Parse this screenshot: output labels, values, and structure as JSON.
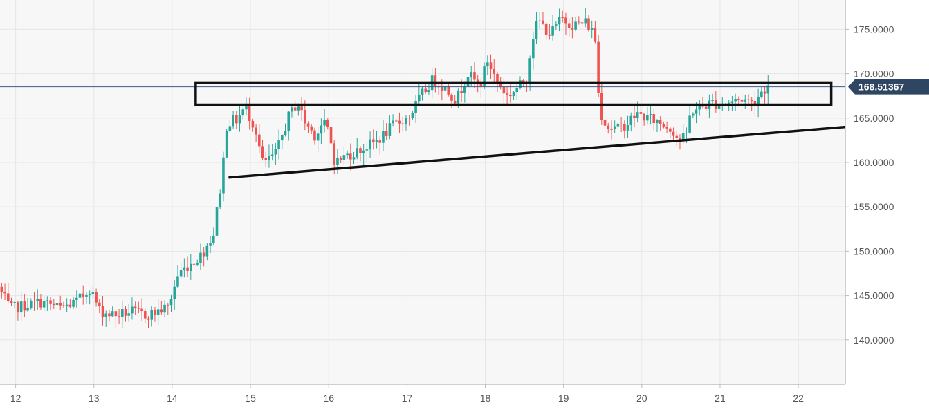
{
  "chart_data": {
    "type": "candlestick",
    "title": "",
    "xlabel": "",
    "ylabel": "",
    "x_ticks": [
      "12",
      "13",
      "14",
      "15",
      "16",
      "17",
      "18",
      "19",
      "20",
      "21",
      "22"
    ],
    "x_range": [
      11.8,
      22.6
    ],
    "y_ticks": [
      "140.0000",
      "145.0000",
      "150.0000",
      "155.0000",
      "160.0000",
      "165.0000",
      "170.0000",
      "175.0000"
    ],
    "ylim": [
      135.0,
      178.3
    ],
    "grid": true,
    "current_price": 168.51367,
    "current_price_label": "168.51367",
    "anchors": [
      [
        11.8,
        146.0
      ],
      [
        11.95,
        143.5
      ],
      [
        12.1,
        143.8
      ],
      [
        12.35,
        144.3
      ],
      [
        12.6,
        143.6
      ],
      [
        12.8,
        144.3
      ],
      [
        12.97,
        145.8
      ],
      [
        13.1,
        143.2
      ],
      [
        13.3,
        142.8
      ],
      [
        13.5,
        143.2
      ],
      [
        13.7,
        142.8
      ],
      [
        13.97,
        143.7
      ],
      [
        14.1,
        147.5
      ],
      [
        14.25,
        148.6
      ],
      [
        14.4,
        149.6
      ],
      [
        14.55,
        152.0
      ],
      [
        14.65,
        158.0
      ],
      [
        14.72,
        164.5
      ],
      [
        14.85,
        164.8
      ],
      [
        14.95,
        166.2
      ],
      [
        15.08,
        164.0
      ],
      [
        15.18,
        159.8
      ],
      [
        15.35,
        161.0
      ],
      [
        15.5,
        165.0
      ],
      [
        15.62,
        166.8
      ],
      [
        15.72,
        164.5
      ],
      [
        15.85,
        163.0
      ],
      [
        15.95,
        164.5
      ],
      [
        16.02,
        163.5
      ],
      [
        16.1,
        160.0
      ],
      [
        16.25,
        160.8
      ],
      [
        16.45,
        161.5
      ],
      [
        16.65,
        162.5
      ],
      [
        16.85,
        164.2
      ],
      [
        17.05,
        165.2
      ],
      [
        17.2,
        167.5
      ],
      [
        17.35,
        169.3
      ],
      [
        17.5,
        168.5
      ],
      [
        17.65,
        167.0
      ],
      [
        17.8,
        170.0
      ],
      [
        17.95,
        168.5
      ],
      [
        18.05,
        171.5
      ],
      [
        18.15,
        169.5
      ],
      [
        18.3,
        167.5
      ],
      [
        18.45,
        168.5
      ],
      [
        18.55,
        169.5
      ],
      [
        18.62,
        174.0
      ],
      [
        18.7,
        176.0
      ],
      [
        18.85,
        174.5
      ],
      [
        19.0,
        176.2
      ],
      [
        19.15,
        175.5
      ],
      [
        19.3,
        175.8
      ],
      [
        19.42,
        174.5
      ],
      [
        19.48,
        166.0
      ],
      [
        19.58,
        164.0
      ],
      [
        19.72,
        163.8
      ],
      [
        19.85,
        164.5
      ],
      [
        19.95,
        165.5
      ],
      [
        20.1,
        165.0
      ],
      [
        20.25,
        164.5
      ],
      [
        20.4,
        163.8
      ],
      [
        20.5,
        162.5
      ],
      [
        20.58,
        162.8
      ],
      [
        20.65,
        165.8
      ],
      [
        20.78,
        166.2
      ],
      [
        20.92,
        166.8
      ],
      [
        21.0,
        166.5
      ],
      [
        21.15,
        166.8
      ],
      [
        21.3,
        167.2
      ],
      [
        21.45,
        166.7
      ],
      [
        21.55,
        168.0
      ],
      [
        21.62,
        168.5
      ]
    ],
    "annotations": {
      "rectangle": {
        "x": [
          14.3,
          22.42
        ],
        "y": [
          166.5,
          169.0
        ]
      },
      "trendline": {
        "x": [
          14.72,
          22.6
        ],
        "y": [
          158.3,
          164.0
        ]
      },
      "price_line_y": 168.51367
    },
    "colors": {
      "up": "#26a69a",
      "down": "#ef5350",
      "grid": "#e6e6e6",
      "plot_bg": "#f7f7f8",
      "axis_text": "#555555",
      "price_line": "#3a5a8a",
      "price_badge": "#2f4663"
    }
  }
}
